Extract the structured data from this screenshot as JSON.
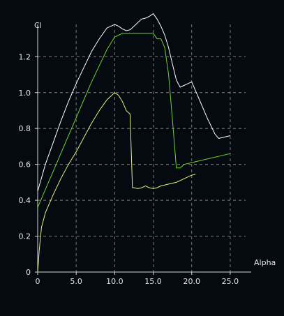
{
  "chart_data": {
    "type": "line",
    "xlabel": "Alpha",
    "ylabel": "Cl",
    "xlim": [
      0,
      27
    ],
    "ylim": [
      0,
      1.38
    ],
    "xticks": [
      0,
      5,
      10,
      15,
      20,
      25
    ],
    "xtick_labels": [
      "0",
      "5.0",
      "10.0",
      "15.0",
      "20.0",
      "25.0"
    ],
    "yticks": [
      0,
      0.2,
      0.4,
      0.6,
      0.8,
      1.0,
      1.2
    ],
    "ytick_labels": [
      "0",
      "0.2",
      "0.4",
      "0.6",
      "0.8",
      "1.0",
      "1.2"
    ],
    "grid": true,
    "series": [
      {
        "color": "#ffffff",
        "x": [
          0,
          1,
          2,
          3,
          4,
          5,
          6,
          7,
          8,
          9,
          10,
          10.5,
          11,
          11.5,
          12,
          12.5,
          13,
          13.5,
          14,
          14.5,
          15,
          15.5,
          16,
          16.5,
          17,
          17.5,
          18,
          18.5,
          19,
          19.5,
          20,
          21,
          22,
          23,
          23.5,
          24,
          25
        ],
        "y": [
          0.45,
          0.6,
          0.72,
          0.84,
          0.95,
          1.05,
          1.14,
          1.23,
          1.3,
          1.36,
          1.38,
          1.37,
          1.355,
          1.345,
          1.35,
          1.37,
          1.39,
          1.41,
          1.415,
          1.425,
          1.44,
          1.41,
          1.37,
          1.32,
          1.25,
          1.16,
          1.07,
          1.03,
          1.04,
          1.05,
          1.06,
          0.96,
          0.86,
          0.77,
          0.745,
          0.75,
          0.76
        ]
      },
      {
        "color": "#6fd42a",
        "x": [
          0,
          1,
          2,
          3,
          4,
          5,
          6,
          7,
          8,
          9,
          10,
          11,
          12,
          13,
          14,
          15,
          15.5,
          16,
          16.5,
          17,
          17.5,
          18,
          18.5,
          19,
          20,
          21,
          22,
          23,
          24,
          25
        ],
        "y": [
          0.36,
          0.46,
          0.56,
          0.66,
          0.76,
          0.86,
          0.96,
          1.06,
          1.15,
          1.24,
          1.31,
          1.33,
          1.33,
          1.33,
          1.33,
          1.33,
          1.3,
          1.3,
          1.25,
          1.1,
          0.85,
          0.58,
          0.58,
          0.6,
          0.61,
          0.62,
          0.63,
          0.64,
          0.65,
          0.66
        ]
      },
      {
        "color": "#e6f07a",
        "x": [
          0,
          0.2,
          0.5,
          1,
          2,
          3,
          4,
          5,
          6,
          7,
          8,
          9,
          10,
          10.5,
          11,
          11.5,
          12,
          12.3,
          12.5,
          13,
          13.5,
          14,
          14.5,
          15,
          15.5,
          16,
          17,
          18,
          19,
          20,
          20.5
        ],
        "y": [
          0.0,
          0.12,
          0.25,
          0.33,
          0.43,
          0.52,
          0.6,
          0.67,
          0.75,
          0.83,
          0.9,
          0.96,
          1.0,
          0.985,
          0.95,
          0.9,
          0.88,
          0.47,
          0.47,
          0.465,
          0.47,
          0.48,
          0.47,
          0.465,
          0.47,
          0.48,
          0.49,
          0.5,
          0.52,
          0.54,
          0.545
        ]
      }
    ]
  }
}
